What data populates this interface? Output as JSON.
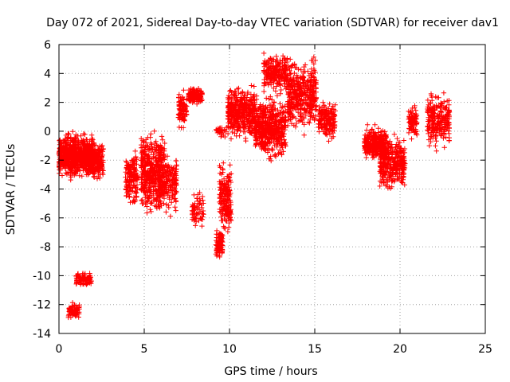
{
  "chart_data": {
    "type": "scatter",
    "title": "Day 072 of 2021, Sidereal Day-to-day VTEC variation (SDTVAR) for receiver dav1",
    "xlabel": "GPS time / hours",
    "ylabel": "SDTVAR / TECUs",
    "xlim": [
      0,
      25
    ],
    "ylim": [
      -14,
      6
    ],
    "xticks": [
      0,
      5,
      10,
      15,
      20,
      25
    ],
    "yticks": [
      -14,
      -12,
      -10,
      -8,
      -6,
      -4,
      -2,
      0,
      2,
      4,
      6
    ],
    "grid": true,
    "marker": "+",
    "colors": {
      "points": "#ff0000",
      "grid": "#a0a0a0",
      "axis": "#000000"
    },
    "clusters": [
      {
        "name": "cluster-01",
        "x_range": [
          0.0,
          2.0
        ],
        "y_min": -3.5,
        "y_max": 0.2,
        "count": 700
      },
      {
        "name": "cluster-02",
        "x_range": [
          1.6,
          2.6
        ],
        "y_min": -3.6,
        "y_max": -0.4,
        "count": 260
      },
      {
        "name": "cluster-03",
        "x_range": [
          0.55,
          1.2
        ],
        "y_min": -13.1,
        "y_max": -11.8,
        "count": 70
      },
      {
        "name": "cluster-04",
        "x_range": [
          1.0,
          1.9
        ],
        "y_min": -10.9,
        "y_max": -9.6,
        "count": 90
      },
      {
        "name": "cluster-05",
        "x_range": [
          3.9,
          4.6
        ],
        "y_min": -5.4,
        "y_max": -1.0,
        "count": 150
      },
      {
        "name": "cluster-06",
        "x_range": [
          4.8,
          6.2
        ],
        "y_min": -6.3,
        "y_max": 0.6,
        "count": 450
      },
      {
        "name": "cluster-07",
        "x_range": [
          5.8,
          6.9
        ],
        "y_min": -6.2,
        "y_max": -0.6,
        "count": 200
      },
      {
        "name": "cluster-08",
        "x_range": [
          7.0,
          7.5
        ],
        "y_min": -0.2,
        "y_max": 3.2,
        "count": 90
      },
      {
        "name": "cluster-09",
        "x_range": [
          7.6,
          8.4
        ],
        "y_min": 1.8,
        "y_max": 3.1,
        "count": 160
      },
      {
        "name": "cluster-10",
        "x_range": [
          7.8,
          8.5
        ],
        "y_min": -7.0,
        "y_max": -3.8,
        "count": 60
      },
      {
        "name": "cluster-11",
        "x_range": [
          9.2,
          9.6
        ],
        "y_min": -9.0,
        "y_max": -6.5,
        "count": 90
      },
      {
        "name": "cluster-12",
        "x_range": [
          9.4,
          10.1
        ],
        "y_min": -7.8,
        "y_max": -1.8,
        "count": 180
      },
      {
        "name": "cluster-13",
        "x_range": [
          9.2,
          9.9
        ],
        "y_min": -0.6,
        "y_max": 0.5,
        "count": 30
      },
      {
        "name": "cluster-14",
        "x_range": [
          9.9,
          11.5
        ],
        "y_min": -1.0,
        "y_max": 3.6,
        "count": 420
      },
      {
        "name": "cluster-15",
        "x_range": [
          11.5,
          13.3
        ],
        "y_min": -2.4,
        "y_max": 2.8,
        "count": 520
      },
      {
        "name": "cluster-16",
        "x_range": [
          12.0,
          13.4
        ],
        "y_min": 2.5,
        "y_max": 5.6,
        "count": 220
      },
      {
        "name": "cluster-17",
        "x_range": [
          13.4,
          15.1
        ],
        "y_min": -0.5,
        "y_max": 5.5,
        "count": 420
      },
      {
        "name": "cluster-18",
        "x_range": [
          15.2,
          16.2
        ],
        "y_min": -1.0,
        "y_max": 2.6,
        "count": 170
      },
      {
        "name": "cluster-19",
        "x_range": [
          17.9,
          19.2
        ],
        "y_min": -2.2,
        "y_max": 0.5,
        "count": 300
      },
      {
        "name": "cluster-20",
        "x_range": [
          18.8,
          20.3
        ],
        "y_min": -4.4,
        "y_max": 0.2,
        "count": 320
      },
      {
        "name": "cluster-21",
        "x_range": [
          20.5,
          21.0
        ],
        "y_min": -0.8,
        "y_max": 2.1,
        "count": 80
      },
      {
        "name": "cluster-22",
        "x_range": [
          21.6,
          22.9
        ],
        "y_min": -1.6,
        "y_max": 2.9,
        "count": 240
      }
    ]
  }
}
